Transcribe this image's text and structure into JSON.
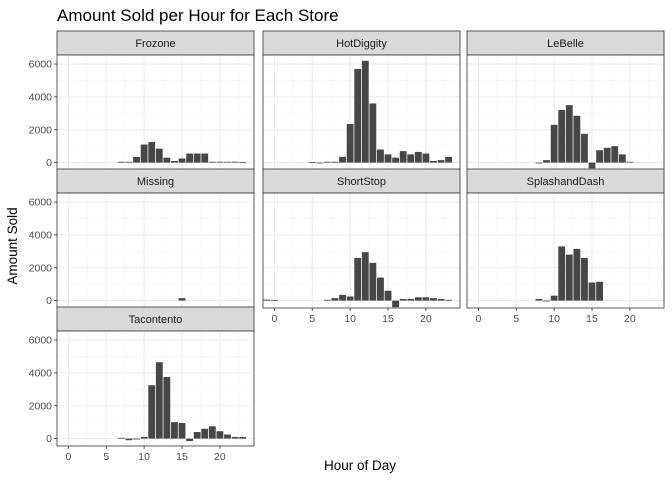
{
  "chart_data": {
    "type": "bar",
    "title": "Amount Sold per Hour for Each Store",
    "xlabel": "Hour of Day",
    "ylabel": "Amount Sold",
    "layout": "facet-wrap-3-columns",
    "xlim": [
      -1.5,
      24.5
    ],
    "ylim": [
      -450,
      6550
    ],
    "x_ticks": [
      0,
      5,
      10,
      15,
      20
    ],
    "y_ticks": [
      0,
      2000,
      4000,
      6000
    ],
    "grid": true,
    "colors": {
      "bar": "#474747",
      "panel_border": "#333333",
      "strip_bg": "#d9d9d9",
      "grid_major": "#ebebeb",
      "grid_minor": "#f5f5f5",
      "tick_text": "#4d4d4d"
    },
    "panels": [
      {
        "label": "Frozone",
        "x": [
          7,
          8,
          9,
          10,
          11,
          12,
          13,
          14,
          15,
          16,
          17,
          18,
          19,
          20,
          21,
          22,
          23
        ],
        "values": [
          50,
          50,
          350,
          1100,
          1250,
          850,
          300,
          100,
          250,
          550,
          550,
          550,
          50,
          50,
          50,
          50,
          20
        ]
      },
      {
        "label": "HotDiggity",
        "x": [
          5,
          6,
          7,
          8,
          9,
          10,
          11,
          12,
          13,
          14,
          15,
          16,
          17,
          18,
          19,
          20,
          21,
          22,
          23
        ],
        "values": [
          30,
          -20,
          50,
          50,
          350,
          2350,
          5700,
          6200,
          3600,
          800,
          500,
          300,
          700,
          500,
          650,
          550,
          100,
          150,
          350
        ]
      },
      {
        "label": "LeBelle",
        "x": [
          8,
          9,
          10,
          11,
          12,
          13,
          14,
          15,
          16,
          17,
          18,
          19,
          20
        ],
        "values": [
          -50,
          150,
          2300,
          3200,
          3500,
          2850,
          1750,
          -350,
          750,
          900,
          1000,
          500,
          50
        ]
      },
      {
        "label": "Missing",
        "x": [
          15
        ],
        "values": [
          150
        ]
      },
      {
        "label": "ShortStop",
        "x": [
          -1,
          0,
          7,
          8,
          9,
          10,
          11,
          12,
          13,
          14,
          15,
          16,
          17,
          18,
          19,
          20,
          21,
          22,
          23
        ],
        "values": [
          60,
          40,
          50,
          150,
          350,
          250,
          2600,
          2950,
          2300,
          1400,
          600,
          -400,
          100,
          100,
          200,
          200,
          150,
          100,
          50
        ]
      },
      {
        "label": "SplashandDash",
        "x": [
          8,
          9,
          10,
          11,
          12,
          13,
          14,
          15,
          16
        ],
        "values": [
          100,
          -50,
          300,
          3300,
          2800,
          3150,
          2600,
          1100,
          1150
        ]
      },
      {
        "label": "Tacontento",
        "x": [
          7,
          8,
          9,
          10,
          11,
          12,
          13,
          14,
          15,
          16,
          17,
          18,
          19,
          20,
          21,
          22,
          23
        ],
        "values": [
          50,
          -100,
          -50,
          100,
          3250,
          4650,
          3750,
          1000,
          950,
          -150,
          400,
          600,
          750,
          450,
          250,
          100,
          100
        ]
      }
    ]
  }
}
